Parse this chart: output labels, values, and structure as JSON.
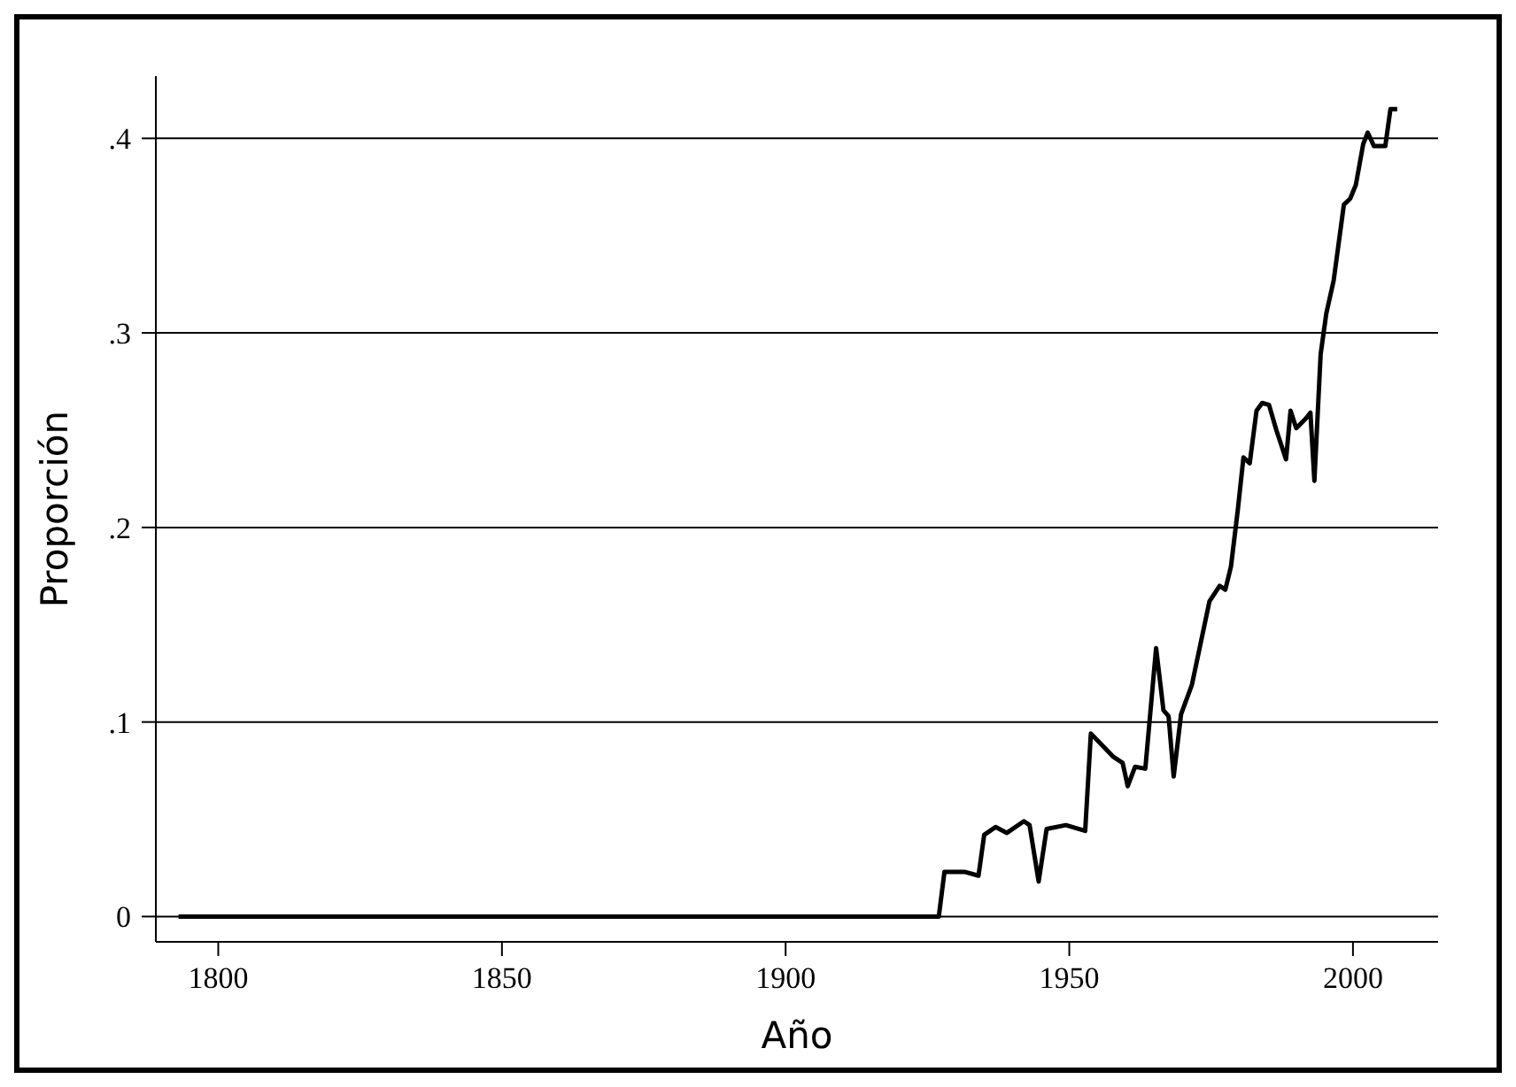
{
  "chart_data": {
    "type": "line",
    "xlabel": "Año",
    "ylabel": "Proporción",
    "xlim": [
      1789,
      2015
    ],
    "xticks": [
      1800,
      1850,
      1900,
      1950,
      2000
    ],
    "ylim": [
      -0.013,
      0.432
    ],
    "yticks": [
      {
        "value": 0,
        "label": "0"
      },
      {
        "value": 0.1,
        "label": ".1"
      },
      {
        "value": 0.2,
        "label": ".2"
      },
      {
        "value": 0.3,
        "label": ".3"
      },
      {
        "value": 0.4,
        "label": ".4"
      }
    ],
    "grid": "y",
    "marker": "none",
    "line_style": "solid",
    "series": [
      {
        "color": "#000000",
        "x": [
          1793,
          1927,
          1928,
          1931.5,
          1934,
          1935,
          1937,
          1939,
          1942,
          1943,
          1944.6,
          1946,
          1949.4,
          1952.8,
          1953.8,
          1957.8,
          1959.4,
          1960.3,
          1961.6,
          1963.4,
          1965.3,
          1966.6,
          1967.5,
          1968.4,
          1969.7,
          1971.6,
          1974.7,
          1976.5,
          1977.5,
          1978.5,
          1979.7,
          1980.7,
          1981.8,
          1983,
          1984,
          1985.2,
          1986.5,
          1988.2,
          1989,
          1990,
          1991.7,
          1992.5,
          1993.2,
          1994.3,
          1995.3,
          1996.6,
          1998.4,
          1999.5,
          2000.5,
          2001.8,
          2002.6,
          2003.7,
          2005.7,
          2006.6,
          2007.8
        ],
        "values": [
          0,
          0,
          0.023,
          0.023,
          0.021,
          0.042,
          0.046,
          0.043,
          0.049,
          0.047,
          0.018,
          0.045,
          0.047,
          0.044,
          0.094,
          0.082,
          0.079,
          0.067,
          0.077,
          0.076,
          0.138,
          0.106,
          0.103,
          0.072,
          0.104,
          0.119,
          0.162,
          0.17,
          0.168,
          0.18,
          0.209,
          0.236,
          0.233,
          0.26,
          0.264,
          0.263,
          0.25,
          0.235,
          0.26,
          0.251,
          0.256,
          0.259,
          0.224,
          0.289,
          0.31,
          0.327,
          0.366,
          0.369,
          0.376,
          0.397,
          0.403,
          0.396,
          0.396,
          0.415,
          0.415
        ]
      }
    ]
  }
}
